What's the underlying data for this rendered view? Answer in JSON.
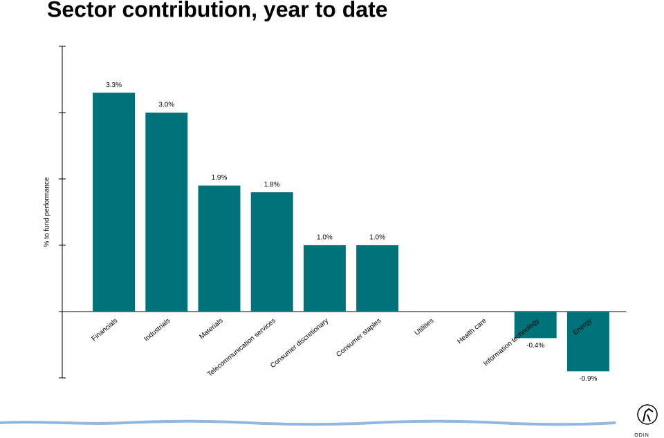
{
  "chart_data": {
    "type": "bar",
    "title": "Sector contribution, year to date",
    "y_label": "% to fund performance",
    "categories": [
      "Financials",
      "Industrials",
      "Materials",
      "Telecommunication services",
      "Consumer discretionary",
      "Consumer staples",
      "Utilities",
      "Health care",
      "Information technology",
      "Energy"
    ],
    "values": [
      3.3,
      3.0,
      1.9,
      1.8,
      1.0,
      1.0,
      0,
      0,
      -0.4,
      -0.9
    ],
    "value_labels": [
      "3.3%",
      "3.0%",
      "1.9%",
      "1.8%",
      "1.0%",
      "1.0%",
      null,
      null,
      "-0.4%",
      "-0.9%"
    ],
    "color": "#00737a",
    "ylim": [
      -1,
      4
    ],
    "yticks": [
      -1,
      0,
      1,
      2,
      3,
      4
    ],
    "grid": false
  },
  "logo": "ODIN"
}
